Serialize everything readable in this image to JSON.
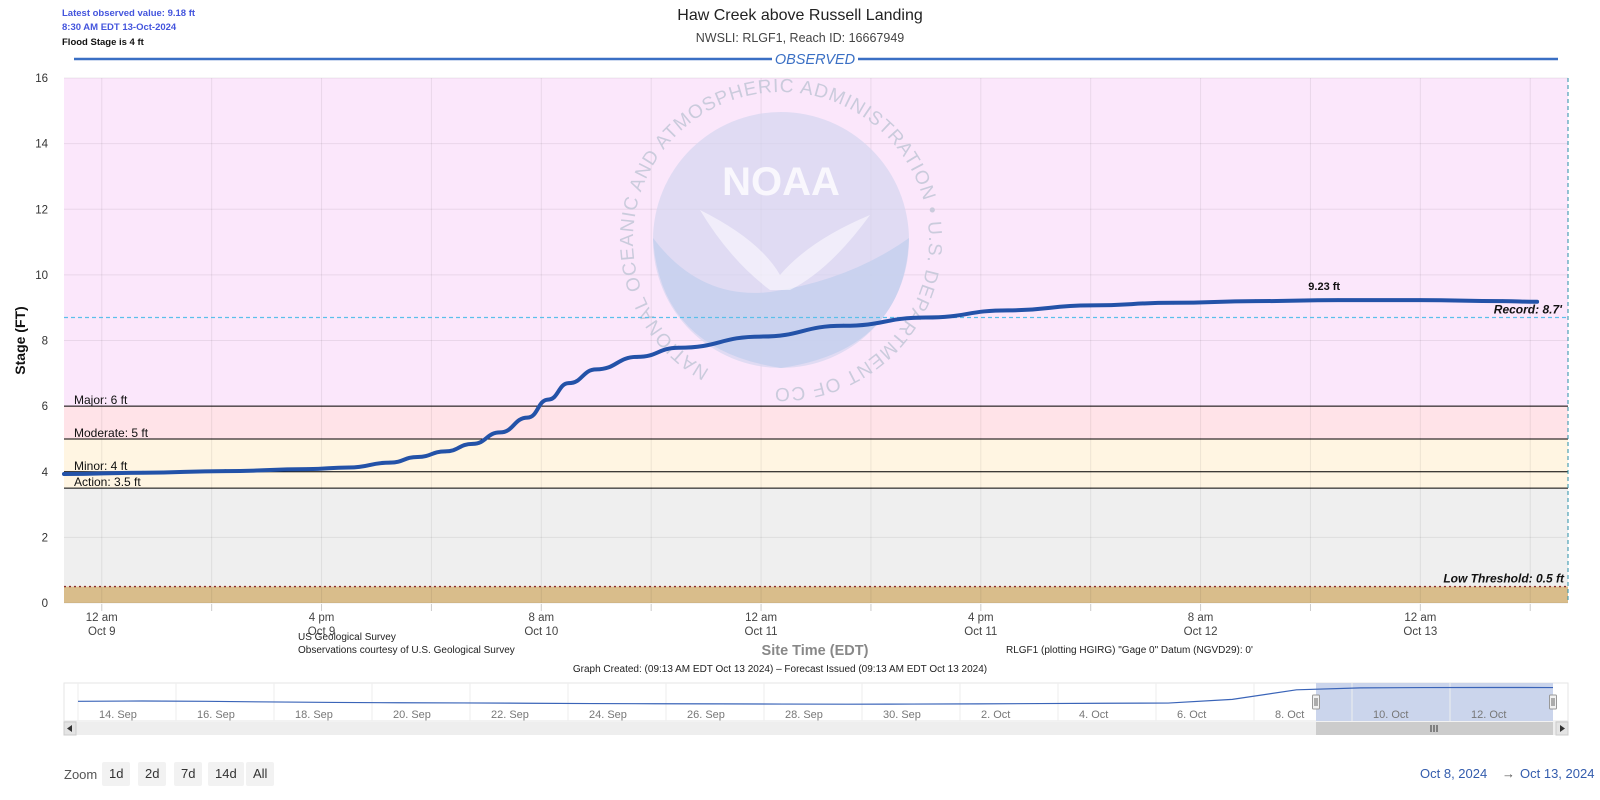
{
  "info": {
    "latest": "Latest observed value: 9.18 ft",
    "time": "8:30 AM EDT 13-Oct-2024",
    "flood_stage": "Flood Stage is 4 ft"
  },
  "colors": {
    "line": "#2352a8",
    "record_line": "#5bc0ea",
    "zone_major": "#fbe7fb",
    "zone_moderate": "#ffe3e8",
    "zone_minor": "#fff5e2",
    "zone_action": "#efefef",
    "zone_low": "#d9bd8b",
    "observed_banner": "#3a6fc4",
    "navigator_selection": "#c5d0ea"
  },
  "watermark": {
    "logo_text": "NOAA",
    "ring_text": "NATIONAL OCEANIC AND ATMOSPHERIC ADMINISTRATION • U.S. DEPARTMENT OF COMMERCE"
  },
  "chart_data": {
    "type": "line",
    "title": "Haw Creek above Russell Landing",
    "subtitle": "NWSLI: RLGF1, Reach ID: 16667949",
    "banner": "OBSERVED",
    "ylabel": "Stage (FT)",
    "xlabel": "Site Time (EDT)",
    "ylim": [
      0,
      16
    ],
    "xlim": [
      "2024-10-08T21:15",
      "2024-10-13T10:45"
    ],
    "yticks": [
      0,
      2,
      4,
      6,
      8,
      10,
      12,
      14,
      16
    ],
    "xticks": [
      {
        "t": "2024-10-09T00:00",
        "line1": "12 am",
        "line2": "Oct 9"
      },
      {
        "t": "2024-10-09T16:00",
        "line1": "4 pm",
        "line2": "Oct 9"
      },
      {
        "t": "2024-10-10T08:00",
        "line1": "8 am",
        "line2": "Oct 10"
      },
      {
        "t": "2024-10-11T00:00",
        "line1": "12 am",
        "line2": "Oct 11"
      },
      {
        "t": "2024-10-11T16:00",
        "line1": "4 pm",
        "line2": "Oct 11"
      },
      {
        "t": "2024-10-12T08:00",
        "line1": "8 am",
        "line2": "Oct 12"
      },
      {
        "t": "2024-10-13T00:00",
        "line1": "12 am",
        "line2": "Oct 13"
      }
    ],
    "grid": true,
    "thresholds": [
      {
        "name": "Major",
        "label": "Major: 6 ft",
        "value": 6
      },
      {
        "name": "Moderate",
        "label": "Moderate: 5 ft",
        "value": 5
      },
      {
        "name": "Minor",
        "label": "Minor: 4 ft",
        "value": 4
      },
      {
        "name": "Action",
        "label": "Action: 3.5 ft",
        "value": 3.5
      }
    ],
    "record": {
      "label": "Record: 8.7'",
      "value": 8.7
    },
    "low_threshold": {
      "label": "Low Threshold: 0.5 ft",
      "value": 0.5
    },
    "peak_label": {
      "text": "9.23 ft",
      "t": "2024-10-12T17:00",
      "value": 9.23
    },
    "series": [
      {
        "points": [
          [
            "2024-10-08T21:15",
            3.93
          ],
          [
            "2024-10-09T03:00",
            3.97
          ],
          [
            "2024-10-09T09:00",
            4.02
          ],
          [
            "2024-10-09T15:00",
            4.08
          ],
          [
            "2024-10-09T18:00",
            4.13
          ],
          [
            "2024-10-09T21:00",
            4.28
          ],
          [
            "2024-10-09T23:00",
            4.45
          ],
          [
            "2024-10-10T01:00",
            4.62
          ],
          [
            "2024-10-10T03:00",
            4.85
          ],
          [
            "2024-10-10T05:00",
            5.2
          ],
          [
            "2024-10-10T07:00",
            5.65
          ],
          [
            "2024-10-10T08:30",
            6.2
          ],
          [
            "2024-10-10T10:00",
            6.7
          ],
          [
            "2024-10-10T12:00",
            7.12
          ],
          [
            "2024-10-10T15:00",
            7.5
          ],
          [
            "2024-10-10T18:00",
            7.78
          ],
          [
            "2024-10-11T00:00",
            8.12
          ],
          [
            "2024-10-11T06:00",
            8.45
          ],
          [
            "2024-10-11T12:00",
            8.7
          ],
          [
            "2024-10-11T18:00",
            8.92
          ],
          [
            "2024-10-12T00:00",
            9.07
          ],
          [
            "2024-10-12T06:00",
            9.15
          ],
          [
            "2024-10-12T12:00",
            9.2
          ],
          [
            "2024-10-12T18:00",
            9.23
          ],
          [
            "2024-10-13T00:00",
            9.23
          ],
          [
            "2024-10-13T06:00",
            9.2
          ],
          [
            "2024-10-13T08:30",
            9.18
          ]
        ]
      }
    ]
  },
  "footer": {
    "source1": "US Geological Survey",
    "source2": "Observations courtesy of U.S. Geological Survey",
    "datum": "RLGF1 (plotting HGIRG) \"Gage 0\" Datum (NGVD29): 0'",
    "created": "Graph Created: (09:13 AM EDT Oct 13 2024) – Forecast Issued (09:13 AM EDT Oct 13 2024)"
  },
  "navigator": {
    "labels": [
      "14. Sep",
      "16. Sep",
      "18. Sep",
      "20. Sep",
      "22. Sep",
      "24. Sep",
      "26. Sep",
      "28. Sep",
      "30. Sep",
      "2. Oct",
      "4. Oct",
      "6. Oct",
      "8. Oct",
      "10. Oct",
      "12. Oct"
    ],
    "series": [
      4.9,
      5.0,
      4.9,
      4.7,
      4.55,
      4.45,
      4.4,
      4.3,
      4.2,
      4.15,
      4.1,
      4.05,
      4.0,
      4.05,
      4.1,
      4.2,
      4.3,
      4.35,
      5.5,
      8.5,
      9.1,
      9.2,
      9.23,
      9.2
    ]
  },
  "zoom": {
    "label": "Zoom",
    "buttons": [
      "1d",
      "2d",
      "7d",
      "14d",
      "All"
    ]
  },
  "range": {
    "from": "Oct 8, 2024",
    "arrow": "→",
    "to": "Oct 13, 2024"
  }
}
